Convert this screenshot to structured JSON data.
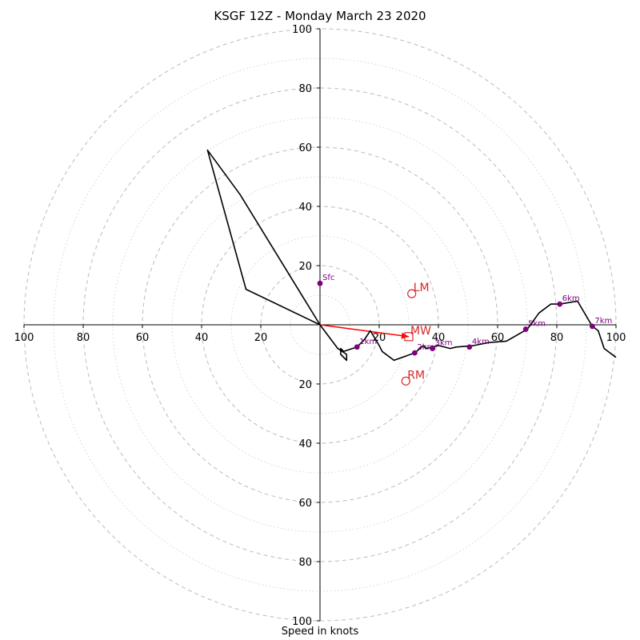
{
  "chart_data": {
    "type": "hodograph",
    "title": "KSGF 12Z - Monday March 23 2020",
    "xlabel": "Speed in knots",
    "xlim": [
      -100,
      100
    ],
    "ylim": [
      -100,
      100
    ],
    "ring_step_dashed": 20,
    "ring_step_dotted": 10,
    "x_tick_labels": [
      "100",
      "80",
      "60",
      "40",
      "20",
      "20",
      "40",
      "60",
      "80",
      "100"
    ],
    "x_tick_values": [
      -100,
      -80,
      -60,
      -40,
      -20,
      20,
      40,
      60,
      80,
      100
    ],
    "y_tick_labels": [
      "100",
      "80",
      "60",
      "40",
      "20",
      "20",
      "40",
      "60",
      "80",
      "100"
    ],
    "y_tick_values": [
      100,
      80,
      60,
      40,
      20,
      -20,
      -40,
      -60,
      -80,
      -100
    ],
    "hodograph": {
      "u": [
        0,
        -25,
        -38,
        -27,
        0,
        6,
        9,
        9,
        7,
        7,
        8,
        12.5,
        15,
        17,
        20,
        21,
        25,
        32,
        35,
        36,
        38,
        40,
        44,
        46,
        52,
        57,
        63,
        70,
        74,
        78,
        81,
        87,
        92,
        94,
        96,
        100
      ],
      "v": [
        0,
        12,
        59,
        44,
        0,
        -8,
        -10,
        -12,
        -10,
        -8,
        -9,
        -7.5,
        -5,
        -2,
        -7,
        -9,
        -12,
        -9.5,
        -7,
        -8,
        -7.5,
        -7,
        -8,
        -7.5,
        -7,
        -6,
        -5.5,
        -1.5,
        4,
        7,
        7,
        8,
        -0.5,
        -2,
        -8,
        -11
      ]
    },
    "height_markers": [
      {
        "label": "Sfc",
        "u": 0,
        "v": 14
      },
      {
        "label": "1km",
        "u": 12.5,
        "v": -7.5
      },
      {
        "label": "2km",
        "u": 32,
        "v": -9.5
      },
      {
        "label": "3km",
        "u": 38,
        "v": -8
      },
      {
        "label": "4km",
        "u": 50.5,
        "v": -7.5
      },
      {
        "label": "5km",
        "u": 69.5,
        "v": -1.5
      },
      {
        "label": "6km",
        "u": 81,
        "v": 7
      },
      {
        "label": "7km",
        "u": 92,
        "v": -0.5
      }
    ],
    "motion_markers": [
      {
        "label": "LM",
        "u": 31,
        "v": 10.5,
        "shape": "circle"
      },
      {
        "label": "RM",
        "u": 29,
        "v": -19,
        "shape": "circle"
      },
      {
        "label": "MW",
        "u": 30,
        "v": -4,
        "shape": "square"
      }
    ],
    "mean_wind_arrow": {
      "u0": 0,
      "v0": 0,
      "u1": 30,
      "v1": -4
    },
    "colors": {
      "hodograph": "#000000",
      "height_marker": "#800080",
      "motion": "#d62728",
      "arrow": "#ff0000",
      "ring": "#bbbbbb",
      "axis": "#000000"
    }
  }
}
